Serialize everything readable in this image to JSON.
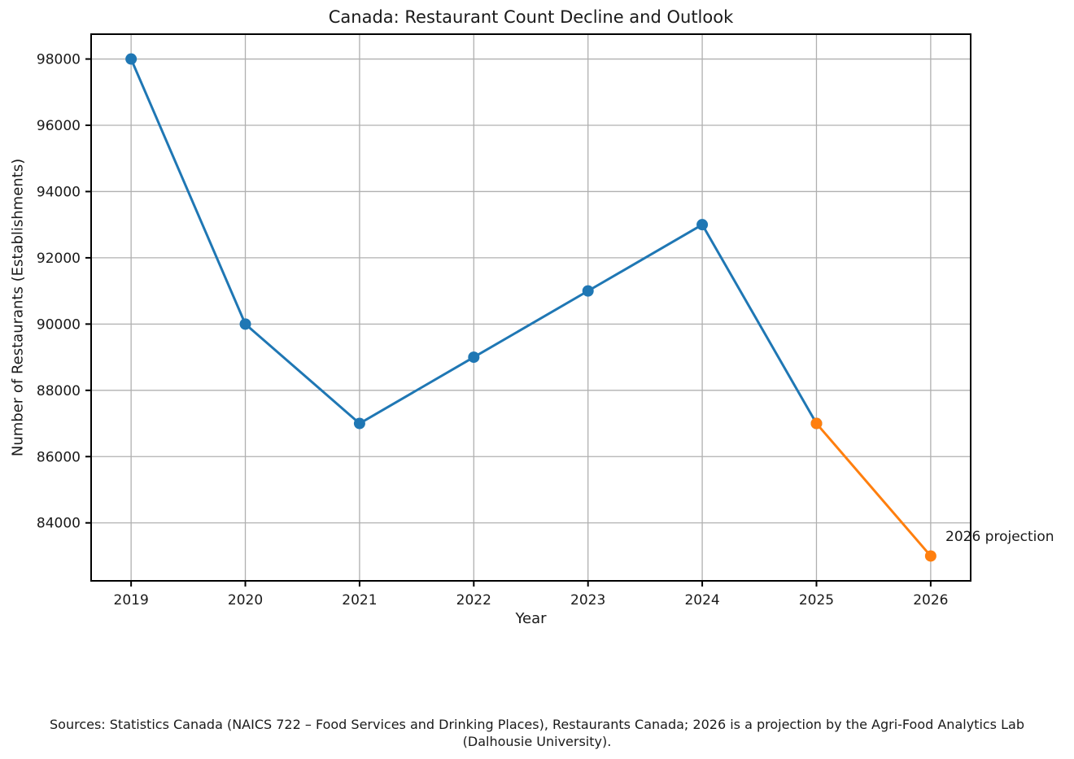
{
  "title": "Canada: Restaurant Count Decline and Outlook",
  "xlabel": "Year",
  "ylabel": "Number of Restaurants (Establishments)",
  "annotation": "2026 projection",
  "source": {
    "line1": "Sources: Statistics Canada (NAICS 722 – Food Services and Drinking Places), Restaurants Canada; 2026 is a projection by the Agri-Food Analytics Lab",
    "line2": "(Dalhousie University)."
  },
  "colors": {
    "historical": "#1f77b4",
    "projection": "#ff7f0e",
    "grid": "#b0b0b0",
    "axis": "#000000",
    "text": "#1a1a1a",
    "background": "#ffffff"
  },
  "chart_data": {
    "type": "line",
    "title": "Canada: Restaurant Count Decline and Outlook",
    "xlabel": "Year",
    "ylabel": "Number of Restaurants (Establishments)",
    "x": [
      2019,
      2020,
      2021,
      2022,
      2023,
      2024,
      2025,
      2026
    ],
    "series": [
      {
        "name": "historical",
        "color": "#1f77b4",
        "marker": "o",
        "x": [
          2019,
          2020,
          2021,
          2022,
          2023,
          2024,
          2025
        ],
        "values": [
          98000,
          90000,
          87000,
          89000,
          91000,
          93000,
          87000
        ]
      },
      {
        "name": "projection",
        "color": "#ff7f0e",
        "marker": "o",
        "x": [
          2025,
          2026
        ],
        "values": [
          87000,
          83000
        ]
      }
    ],
    "annotations": [
      {
        "text": "2026 projection",
        "x": 2026,
        "y": 83000
      }
    ],
    "xticks": [
      2019,
      2020,
      2021,
      2022,
      2023,
      2024,
      2025,
      2026
    ],
    "yticks": [
      84000,
      86000,
      88000,
      90000,
      92000,
      94000,
      96000,
      98000
    ],
    "xlim": [
      2018.65,
      2026.35
    ],
    "ylim": [
      82250,
      98750
    ],
    "grid": true,
    "grid_color": "#b0b0b0",
    "legend": "none"
  }
}
